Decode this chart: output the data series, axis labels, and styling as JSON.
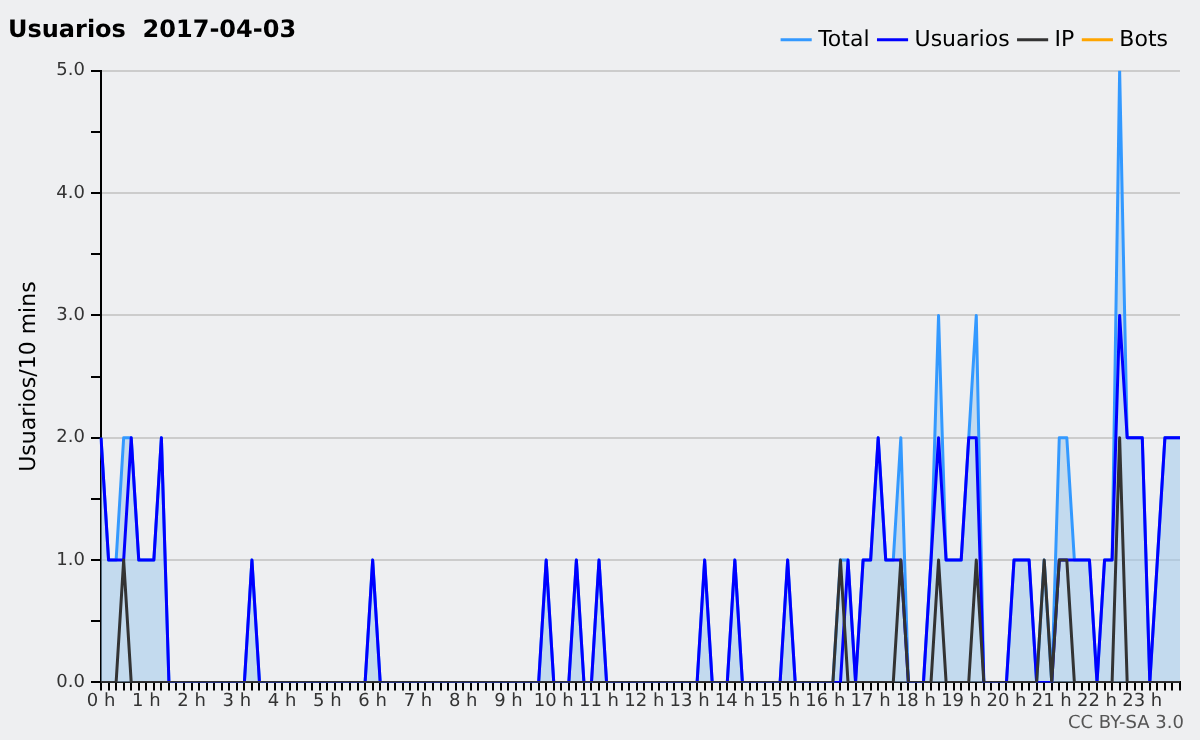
{
  "chart_data": {
    "type": "line",
    "title": "Usuarios  2017-04-03",
    "ylabel": "Usuarios/10 mins",
    "categories": [
      "0 h",
      null,
      null,
      null,
      null,
      null,
      "1 h",
      null,
      null,
      null,
      null,
      null,
      "2 h",
      null,
      null,
      null,
      null,
      null,
      "3 h",
      null,
      null,
      null,
      null,
      null,
      "4 h",
      null,
      null,
      null,
      null,
      null,
      "5 h",
      null,
      null,
      null,
      null,
      null,
      "6 h",
      null,
      null,
      null,
      null,
      null,
      "7 h",
      null,
      null,
      null,
      null,
      null,
      "8 h",
      null,
      null,
      null,
      null,
      null,
      "9 h",
      null,
      null,
      null,
      null,
      null,
      "10 h",
      null,
      null,
      null,
      null,
      null,
      "11 h",
      null,
      null,
      null,
      null,
      null,
      "12 h",
      null,
      null,
      null,
      null,
      null,
      "13 h",
      null,
      null,
      null,
      null,
      null,
      "14 h",
      null,
      null,
      null,
      null,
      null,
      "15 h",
      null,
      null,
      null,
      null,
      null,
      "16 h",
      null,
      null,
      null,
      null,
      null,
      "17 h",
      null,
      null,
      null,
      null,
      null,
      "18 h",
      null,
      null,
      null,
      null,
      null,
      "19 h",
      null,
      null,
      null,
      null,
      null,
      "20 h",
      null,
      null,
      null,
      null,
      null,
      "21 h",
      null,
      null,
      null,
      null,
      null,
      "22 h",
      null,
      null,
      null,
      null,
      null,
      "23 h",
      null,
      null,
      null,
      null,
      null
    ],
    "series": [
      {
        "name": "Total",
        "type": "area",
        "color": "#3399ff",
        "values": [
          2,
          1,
          1,
          2,
          2,
          1,
          1,
          1,
          2,
          0,
          0,
          0,
          0,
          0,
          0,
          0,
          0,
          0,
          0,
          0,
          1,
          0,
          0,
          0,
          0,
          0,
          0,
          0,
          0,
          0,
          0,
          0,
          0,
          0,
          0,
          0,
          1,
          0,
          0,
          0,
          0,
          0,
          0,
          0,
          0,
          0,
          0,
          0,
          0,
          0,
          0,
          0,
          0,
          0,
          0,
          0,
          0,
          0,
          0,
          1,
          0,
          0,
          0,
          1,
          0,
          0,
          1,
          0,
          0,
          0,
          0,
          0,
          0,
          0,
          0,
          0,
          0,
          0,
          0,
          0,
          1,
          0,
          0,
          0,
          1,
          0,
          0,
          0,
          0,
          0,
          0,
          1,
          0,
          0,
          0,
          0,
          0,
          0,
          1,
          1,
          0,
          1,
          1,
          2,
          1,
          1,
          2,
          0,
          0,
          0,
          1,
          3,
          1,
          1,
          1,
          2,
          3,
          0,
          0,
          0,
          0,
          1,
          1,
          1,
          0,
          1,
          0,
          2,
          2,
          1,
          1,
          1,
          0,
          1,
          1,
          5,
          2,
          2,
          2,
          0,
          1,
          2,
          2,
          2
        ]
      },
      {
        "name": "Usuarios",
        "type": "line",
        "color": "#0000ff",
        "values": [
          2,
          1,
          1,
          1,
          2,
          1,
          1,
          1,
          2,
          0,
          0,
          0,
          0,
          0,
          0,
          0,
          0,
          0,
          0,
          0,
          1,
          0,
          0,
          0,
          0,
          0,
          0,
          0,
          0,
          0,
          0,
          0,
          0,
          0,
          0,
          0,
          1,
          0,
          0,
          0,
          0,
          0,
          0,
          0,
          0,
          0,
          0,
          0,
          0,
          0,
          0,
          0,
          0,
          0,
          0,
          0,
          0,
          0,
          0,
          1,
          0,
          0,
          0,
          1,
          0,
          0,
          1,
          0,
          0,
          0,
          0,
          0,
          0,
          0,
          0,
          0,
          0,
          0,
          0,
          0,
          1,
          0,
          0,
          0,
          1,
          0,
          0,
          0,
          0,
          0,
          0,
          1,
          0,
          0,
          0,
          0,
          0,
          0,
          0,
          1,
          0,
          1,
          1,
          2,
          1,
          1,
          1,
          0,
          0,
          0,
          1,
          2,
          1,
          1,
          1,
          2,
          2,
          0,
          0,
          0,
          0,
          1,
          1,
          1,
          0,
          0,
          0,
          1,
          1,
          1,
          1,
          1,
          0,
          1,
          1,
          3,
          2,
          2,
          2,
          0,
          1,
          2,
          2,
          2
        ]
      },
      {
        "name": "IP",
        "type": "line",
        "color": "#333333",
        "values": [
          0,
          0,
          0,
          1,
          0,
          0,
          0,
          0,
          0,
          0,
          0,
          0,
          0,
          0,
          0,
          0,
          0,
          0,
          0,
          0,
          0,
          0,
          0,
          0,
          0,
          0,
          0,
          0,
          0,
          0,
          0,
          0,
          0,
          0,
          0,
          0,
          0,
          0,
          0,
          0,
          0,
          0,
          0,
          0,
          0,
          0,
          0,
          0,
          0,
          0,
          0,
          0,
          0,
          0,
          0,
          0,
          0,
          0,
          0,
          0,
          0,
          0,
          0,
          0,
          0,
          0,
          0,
          0,
          0,
          0,
          0,
          0,
          0,
          0,
          0,
          0,
          0,
          0,
          0,
          0,
          0,
          0,
          0,
          0,
          0,
          0,
          0,
          0,
          0,
          0,
          0,
          0,
          0,
          0,
          0,
          0,
          0,
          0,
          1,
          0,
          0,
          0,
          0,
          0,
          0,
          0,
          1,
          0,
          0,
          0,
          0,
          1,
          0,
          0,
          0,
          0,
          1,
          0,
          0,
          0,
          0,
          0,
          0,
          0,
          0,
          1,
          0,
          1,
          1,
          0,
          0,
          0,
          0,
          0,
          0,
          2,
          0,
          0,
          0,
          0,
          0,
          0,
          0,
          0
        ]
      },
      {
        "name": "Bots",
        "type": "line",
        "color": "#ffa500",
        "values": [
          null,
          null,
          null,
          null,
          null,
          null,
          null,
          null,
          null,
          null,
          null,
          null,
          null,
          null,
          null,
          null,
          null,
          null,
          null,
          null,
          null,
          null,
          null,
          null,
          null,
          null,
          null,
          null,
          null,
          null,
          null,
          null,
          null,
          null,
          null,
          null,
          null,
          null,
          null,
          null,
          null,
          null,
          null,
          null,
          null,
          null,
          null,
          null,
          null,
          null,
          null,
          null,
          null,
          null,
          null,
          null,
          null,
          null,
          null,
          null,
          null,
          null,
          null,
          null,
          null,
          null,
          null,
          null,
          null,
          null,
          null,
          null,
          null,
          null,
          null,
          null,
          null,
          null,
          null,
          null,
          null,
          null,
          null,
          null,
          null,
          null,
          null,
          null,
          null,
          null,
          null,
          null,
          null,
          null,
          null,
          null,
          null,
          null,
          null,
          null,
          null,
          null,
          null,
          null,
          null,
          null,
          null,
          null,
          null,
          null,
          null,
          null,
          null,
          null,
          null,
          null,
          null,
          null,
          null,
          null,
          null,
          null,
          null,
          null,
          null,
          null,
          null,
          null,
          null,
          null,
          null,
          null,
          null,
          null,
          null,
          null,
          null,
          null,
          null,
          null,
          null,
          null,
          null,
          null
        ]
      }
    ],
    "ylim": [
      0,
      5
    ],
    "yticks": [
      {
        "value": 0,
        "label": "0.0"
      },
      {
        "value": 0.5,
        "label": null
      },
      {
        "value": 1,
        "label": "1.0"
      },
      {
        "value": 1.5,
        "label": null
      },
      {
        "value": 2,
        "label": "2.0"
      },
      {
        "value": 2.5,
        "label": null
      },
      {
        "value": 3,
        "label": "3.0"
      },
      {
        "value": 3.5,
        "label": null
      },
      {
        "value": 4,
        "label": "4.0"
      },
      {
        "value": 4.5,
        "label": null
      },
      {
        "value": 5,
        "label": "5.0"
      }
    ],
    "grid": "y",
    "legend": "top right",
    "marker": "none",
    "line_style": "solid",
    "annotations": [
      "CC BY-SA 3.0"
    ]
  }
}
